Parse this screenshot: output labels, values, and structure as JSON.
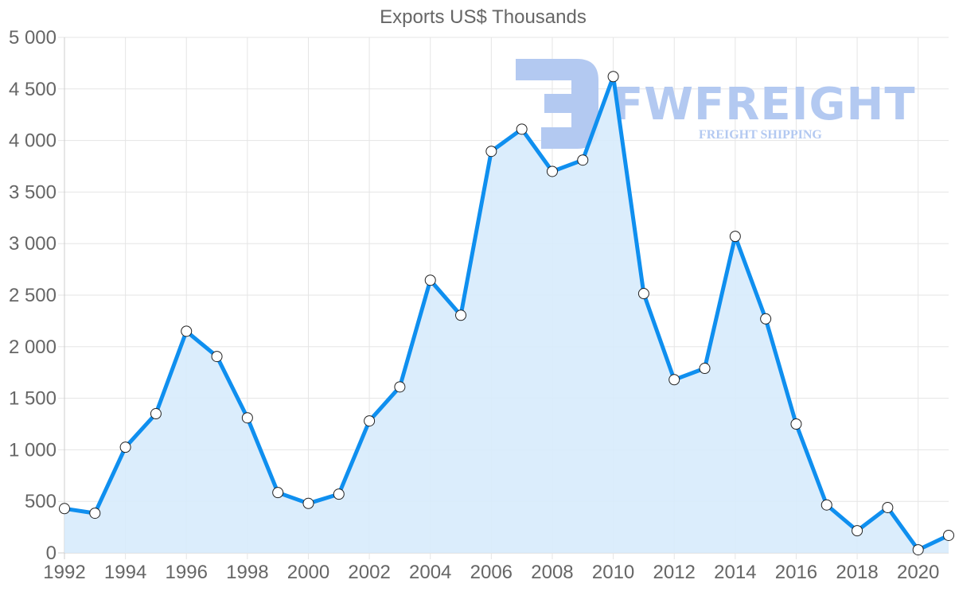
{
  "chart_data": {
    "type": "line",
    "title": "Exports US$ Thousands",
    "xlabel": "",
    "ylabel": "",
    "x": [
      1992,
      1993,
      1994,
      1995,
      1996,
      1997,
      1998,
      1999,
      2000,
      2001,
      2002,
      2003,
      2004,
      2005,
      2006,
      2007,
      2008,
      2009,
      2010,
      2011,
      2012,
      2013,
      2014,
      2015,
      2016,
      2017,
      2018,
      2019,
      2020,
      2021
    ],
    "series": [
      {
        "name": "Exports US$ Thousands",
        "values": [
          430,
          385,
          1025,
          1350,
          2150,
          1905,
          1310,
          585,
          480,
          570,
          1280,
          1610,
          2645,
          2305,
          3895,
          4110,
          3700,
          3810,
          4620,
          2515,
          1680,
          1790,
          3070,
          2270,
          1250,
          465,
          215,
          440,
          30,
          170
        ],
        "line_color": "#0f8fef",
        "fill_color": "#d7ebfc",
        "marker": "circle-white"
      }
    ],
    "ylim": [
      0,
      5000
    ],
    "xlim": [
      1992,
      2021
    ],
    "y_ticks": [
      "0",
      "500",
      "1 000",
      "1 500",
      "2 000",
      "2 500",
      "3 000",
      "3 500",
      "4 000",
      "4 500",
      "5 000"
    ],
    "x_ticks": [
      "1992",
      "1994",
      "1996",
      "1998",
      "2000",
      "2002",
      "2004",
      "2006",
      "2008",
      "2010",
      "2012",
      "2014",
      "2016",
      "2018",
      "2020"
    ],
    "grid": true,
    "legend": "none",
    "area_fill": true
  },
  "watermark": {
    "brand": "FWFREIGHT",
    "tagline": "FREIGHT SHIPPING",
    "color": "#b3c9f1"
  },
  "colors": {
    "grid": "#e5e5e5",
    "axis": "#cccccc",
    "text": "#666666"
  }
}
